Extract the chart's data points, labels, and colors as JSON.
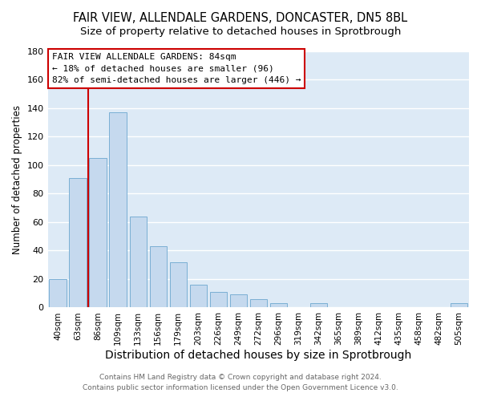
{
  "title": "FAIR VIEW, ALLENDALE GARDENS, DONCASTER, DN5 8BL",
  "subtitle": "Size of property relative to detached houses in Sprotbrough",
  "xlabel": "Distribution of detached houses by size in Sprotbrough",
  "ylabel": "Number of detached properties",
  "bar_labels": [
    "40sqm",
    "63sqm",
    "86sqm",
    "109sqm",
    "133sqm",
    "156sqm",
    "179sqm",
    "203sqm",
    "226sqm",
    "249sqm",
    "272sqm",
    "296sqm",
    "319sqm",
    "342sqm",
    "365sqm",
    "389sqm",
    "412sqm",
    "435sqm",
    "458sqm",
    "482sqm",
    "505sqm"
  ],
  "bar_values": [
    20,
    91,
    105,
    137,
    64,
    43,
    32,
    16,
    11,
    9,
    6,
    3,
    0,
    3,
    0,
    0,
    0,
    0,
    0,
    0,
    3
  ],
  "bar_color": "#c5d9ee",
  "bar_edge_color": "#7aafd4",
  "vline_color": "#cc0000",
  "ylim": [
    0,
    180
  ],
  "yticks": [
    0,
    20,
    40,
    60,
    80,
    100,
    120,
    140,
    160,
    180
  ],
  "annotation_title": "FAIR VIEW ALLENDALE GARDENS: 84sqm",
  "annotation_line1": "← 18% of detached houses are smaller (96)",
  "annotation_line2": "82% of semi-detached houses are larger (446) →",
  "annotation_box_color": "#ffffff",
  "annotation_box_edge": "#cc0000",
  "footer_line1": "Contains HM Land Registry data © Crown copyright and database right 2024.",
  "footer_line2": "Contains public sector information licensed under the Open Government Licence v3.0.",
  "plot_bg_color": "#ddeaf6",
  "figure_bg_color": "#ffffff",
  "grid_color": "#ffffff",
  "title_fontsize": 10.5,
  "subtitle_fontsize": 9.5,
  "xlabel_fontsize": 10,
  "ylabel_fontsize": 8.5,
  "footer_fontsize": 6.5,
  "tick_fontsize": 7.5
}
